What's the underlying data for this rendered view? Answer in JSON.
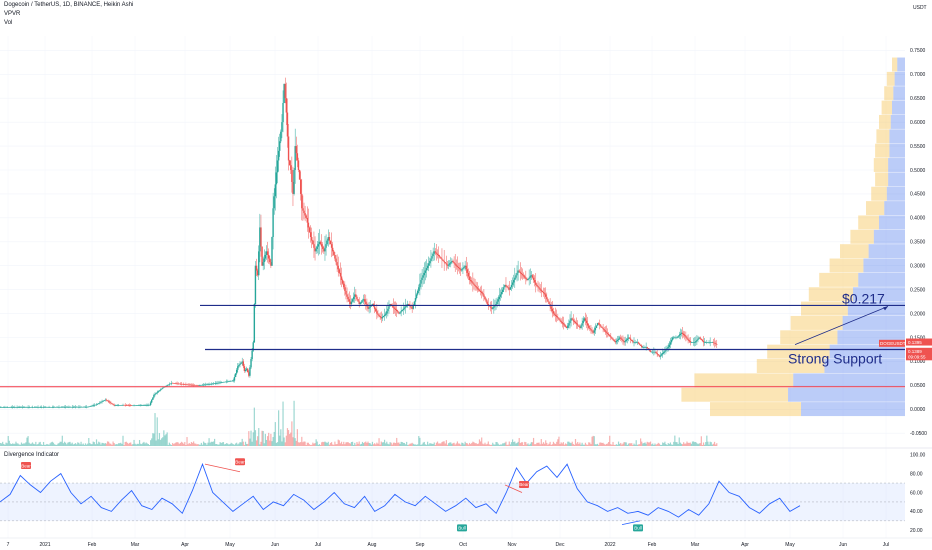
{
  "header": {
    "symbol_line": "Dogecoin / TetherUS, 1D, BINANCE, Heikin Ashi",
    "indicator_1": "VPVR",
    "indicator_2": "Vol",
    "currency": "USDT"
  },
  "price_labels": {
    "current_price_tag": "0.1389",
    "symbol_tag": "DOGEUSDT",
    "countdown_tag": "09:09:55",
    "prev_tag": "0.1395"
  },
  "annotations": {
    "resistance_label": "$0.217",
    "support_label": "Strong Support"
  },
  "oscillator": {
    "title": "Divergence Indicator",
    "signals": [
      {
        "label": "Bear",
        "kind": "bear"
      },
      {
        "label": "Bear",
        "kind": "bear"
      },
      {
        "label": "Bear",
        "kind": "bear"
      },
      {
        "label": "Bull",
        "kind": "bull"
      },
      {
        "label": "Bull",
        "kind": "bull"
      }
    ],
    "y_ticks": [
      "100.00",
      "80.00",
      "60.00",
      "40.00",
      "20.00"
    ]
  },
  "colors": {
    "up": "#26a69a",
    "down": "#ef5350",
    "line": "#1f2d8a",
    "support_red": "#f23645",
    "osc_line": "#2962ff",
    "vp_up_blue": "#3d6eeb",
    "vp_down_yellow": "#f7c55a"
  },
  "chart_data": {
    "type": "candlestick",
    "series_style": "Heikin Ashi",
    "y_ticks": [
      "0.7500",
      "0.7000",
      "0.6500",
      "0.6000",
      "0.5500",
      "0.5000",
      "0.4500",
      "0.4000",
      "0.3500",
      "0.3000",
      "0.2500",
      "0.2000",
      "0.1500",
      "0.1000",
      "0.0500",
      "0.0000",
      "-0.0500"
    ],
    "ylim": [
      -0.06,
      0.78
    ],
    "x_ticks": [
      "7",
      "2021",
      "Feb",
      "Mar",
      "Apr",
      "May",
      "Jun",
      "Jul",
      "Aug",
      "Sep",
      "Oct",
      "Nov",
      "Dec",
      "2022",
      "Feb",
      "Mar",
      "Apr",
      "May",
      "Jun",
      "Jul"
    ],
    "price_path": [
      [
        0,
        0.0045
      ],
      [
        20,
        0.0047
      ],
      [
        40,
        0.005
      ],
      [
        44,
        0.01
      ],
      [
        48,
        0.02
      ],
      [
        52,
        0.008
      ],
      [
        56,
        0.009
      ],
      [
        60,
        0.008
      ],
      [
        64,
        0.0082
      ],
      [
        68,
        0.009
      ],
      [
        70,
        0.03
      ],
      [
        74,
        0.045
      ],
      [
        78,
        0.055
      ],
      [
        84,
        0.052
      ],
      [
        90,
        0.05
      ],
      [
        96,
        0.053
      ],
      [
        100,
        0.056
      ],
      [
        106,
        0.06
      ],
      [
        108,
        0.09
      ],
      [
        110,
        0.1
      ],
      [
        111,
        0.08
      ],
      [
        112,
        0.085
      ],
      [
        113,
        0.07
      ],
      [
        115,
        0.14
      ],
      [
        116,
        0.3
      ],
      [
        117,
        0.28
      ],
      [
        118,
        0.38
      ],
      [
        119,
        0.3
      ],
      [
        121,
        0.33
      ],
      [
        123,
        0.3
      ],
      [
        124,
        0.42
      ],
      [
        126,
        0.52
      ],
      [
        128,
        0.6
      ],
      [
        129,
        0.68
      ],
      [
        130,
        0.62
      ],
      [
        131,
        0.52
      ],
      [
        132,
        0.5
      ],
      [
        133,
        0.45
      ],
      [
        134,
        0.55
      ],
      [
        135,
        0.52
      ],
      [
        136,
        0.48
      ],
      [
        137,
        0.42
      ],
      [
        139,
        0.4
      ],
      [
        141,
        0.36
      ],
      [
        143,
        0.33
      ],
      [
        145,
        0.35
      ],
      [
        147,
        0.33
      ],
      [
        149,
        0.36
      ],
      [
        151,
        0.33
      ],
      [
        153,
        0.3
      ],
      [
        155,
        0.27
      ],
      [
        157,
        0.24
      ],
      [
        159,
        0.22
      ],
      [
        161,
        0.24
      ],
      [
        163,
        0.22
      ],
      [
        165,
        0.23
      ],
      [
        167,
        0.21
      ],
      [
        169,
        0.22
      ],
      [
        171,
        0.2
      ],
      [
        173,
        0.19
      ],
      [
        175,
        0.2
      ],
      [
        177,
        0.22
      ],
      [
        179,
        0.21
      ],
      [
        181,
        0.2
      ],
      [
        183,
        0.21
      ],
      [
        185,
        0.22
      ],
      [
        187,
        0.21
      ],
      [
        189,
        0.24
      ],
      [
        191,
        0.27
      ],
      [
        193,
        0.29
      ],
      [
        195,
        0.31
      ],
      [
        197,
        0.33
      ],
      [
        199,
        0.32
      ],
      [
        201,
        0.31
      ],
      [
        203,
        0.3
      ],
      [
        205,
        0.31
      ],
      [
        207,
        0.3
      ],
      [
        209,
        0.29
      ],
      [
        211,
        0.3
      ],
      [
        213,
        0.27
      ],
      [
        215,
        0.26
      ],
      [
        217,
        0.25
      ],
      [
        219,
        0.24
      ],
      [
        221,
        0.22
      ],
      [
        223,
        0.21
      ],
      [
        225,
        0.22
      ],
      [
        227,
        0.24
      ],
      [
        229,
        0.26
      ],
      [
        231,
        0.25
      ],
      [
        233,
        0.27
      ],
      [
        235,
        0.29
      ],
      [
        237,
        0.28
      ],
      [
        239,
        0.27
      ],
      [
        241,
        0.28
      ],
      [
        243,
        0.26
      ],
      [
        245,
        0.25
      ],
      [
        247,
        0.24
      ],
      [
        249,
        0.22
      ],
      [
        251,
        0.2
      ],
      [
        253,
        0.19
      ],
      [
        255,
        0.18
      ],
      [
        257,
        0.17
      ],
      [
        259,
        0.19
      ],
      [
        261,
        0.18
      ],
      [
        263,
        0.17
      ],
      [
        265,
        0.19
      ],
      [
        267,
        0.17
      ],
      [
        269,
        0.16
      ],
      [
        271,
        0.18
      ],
      [
        273,
        0.17
      ],
      [
        275,
        0.16
      ],
      [
        277,
        0.15
      ],
      [
        279,
        0.14
      ],
      [
        281,
        0.15
      ],
      [
        283,
        0.14
      ],
      [
        285,
        0.15
      ],
      [
        287,
        0.14
      ],
      [
        289,
        0.14
      ],
      [
        291,
        0.13
      ],
      [
        293,
        0.13
      ],
      [
        295,
        0.12
      ],
      [
        297,
        0.12
      ],
      [
        299,
        0.11
      ],
      [
        301,
        0.12
      ],
      [
        303,
        0.13
      ],
      [
        305,
        0.15
      ],
      [
        307,
        0.15
      ],
      [
        309,
        0.16
      ],
      [
        311,
        0.15
      ],
      [
        313,
        0.14
      ],
      [
        315,
        0.14
      ],
      [
        317,
        0.15
      ],
      [
        319,
        0.14
      ],
      [
        321,
        0.14
      ],
      [
        323,
        0.14
      ],
      [
        325,
        0.135
      ]
    ],
    "horizontal_levels": [
      {
        "value": 0.217,
        "label": "$0.217",
        "color": "#1f2d8a"
      },
      {
        "value": 0.125,
        "label": "Strong Support",
        "color": "#1f2d8a"
      },
      {
        "value": 0.047,
        "label": "",
        "color": "#f23645"
      }
    ],
    "volume_profile": [
      {
        "price": 0.72,
        "up": 6,
        "down": 4
      },
      {
        "price": 0.69,
        "up": 8,
        "down": 6
      },
      {
        "price": 0.66,
        "up": 9,
        "down": 7
      },
      {
        "price": 0.63,
        "up": 10,
        "down": 8
      },
      {
        "price": 0.6,
        "up": 11,
        "down": 9
      },
      {
        "price": 0.57,
        "up": 12,
        "down": 10
      },
      {
        "price": 0.54,
        "up": 12,
        "down": 11
      },
      {
        "price": 0.51,
        "up": 13,
        "down": 11
      },
      {
        "price": 0.48,
        "up": 13,
        "down": 10
      },
      {
        "price": 0.45,
        "up": 14,
        "down": 12
      },
      {
        "price": 0.42,
        "up": 16,
        "down": 14
      },
      {
        "price": 0.39,
        "up": 20,
        "down": 16
      },
      {
        "price": 0.36,
        "up": 24,
        "down": 18
      },
      {
        "price": 0.33,
        "up": 28,
        "down": 22
      },
      {
        "price": 0.3,
        "up": 32,
        "down": 26
      },
      {
        "price": 0.27,
        "up": 36,
        "down": 30
      },
      {
        "price": 0.24,
        "up": 40,
        "down": 34
      },
      {
        "price": 0.21,
        "up": 44,
        "down": 36
      },
      {
        "price": 0.18,
        "up": 48,
        "down": 40
      },
      {
        "price": 0.15,
        "up": 52,
        "down": 44
      },
      {
        "price": 0.12,
        "up": 58,
        "down": 48
      },
      {
        "price": 0.09,
        "up": 62,
        "down": 52
      },
      {
        "price": 0.06,
        "up": 86,
        "down": 76
      },
      {
        "price": 0.03,
        "up": 90,
        "down": 82
      },
      {
        "price": 0.0,
        "up": 80,
        "down": 70
      }
    ],
    "oscillator_path": [
      [
        0,
        50
      ],
      [
        4,
        58
      ],
      [
        8,
        78
      ],
      [
        12,
        68
      ],
      [
        16,
        60
      ],
      [
        20,
        72
      ],
      [
        24,
        80
      ],
      [
        28,
        60
      ],
      [
        32,
        48
      ],
      [
        36,
        56
      ],
      [
        40,
        44
      ],
      [
        44,
        40
      ],
      [
        48,
        52
      ],
      [
        52,
        62
      ],
      [
        56,
        46
      ],
      [
        60,
        42
      ],
      [
        64,
        54
      ],
      [
        68,
        48
      ],
      [
        72,
        38
      ],
      [
        76,
        62
      ],
      [
        80,
        90
      ],
      [
        84,
        60
      ],
      [
        88,
        50
      ],
      [
        92,
        40
      ],
      [
        96,
        48
      ],
      [
        100,
        56
      ],
      [
        104,
        42
      ],
      [
        108,
        50
      ],
      [
        112,
        46
      ],
      [
        116,
        58
      ],
      [
        120,
        52
      ],
      [
        124,
        42
      ],
      [
        128,
        50
      ],
      [
        132,
        60
      ],
      [
        136,
        48
      ],
      [
        140,
        44
      ],
      [
        144,
        56
      ],
      [
        148,
        40
      ],
      [
        152,
        46
      ],
      [
        156,
        58
      ],
      [
        160,
        50
      ],
      [
        164,
        46
      ],
      [
        168,
        56
      ],
      [
        172,
        48
      ],
      [
        176,
        40
      ],
      [
        180,
        46
      ],
      [
        184,
        54
      ],
      [
        188,
        44
      ],
      [
        192,
        48
      ],
      [
        196,
        38
      ],
      [
        200,
        60
      ],
      [
        204,
        86
      ],
      [
        208,
        70
      ],
      [
        212,
        82
      ],
      [
        216,
        88
      ],
      [
        220,
        76
      ],
      [
        224,
        90
      ],
      [
        228,
        64
      ],
      [
        232,
        50
      ],
      [
        236,
        46
      ],
      [
        240,
        40
      ],
      [
        244,
        44
      ],
      [
        248,
        38
      ],
      [
        252,
        40
      ],
      [
        256,
        36
      ],
      [
        260,
        44
      ],
      [
        264,
        40
      ],
      [
        268,
        34
      ],
      [
        272,
        42
      ],
      [
        276,
        36
      ],
      [
        280,
        48
      ],
      [
        284,
        72
      ],
      [
        288,
        60
      ],
      [
        292,
        56
      ],
      [
        296,
        44
      ],
      [
        300,
        38
      ],
      [
        304,
        48
      ],
      [
        308,
        54
      ],
      [
        312,
        40
      ],
      [
        316,
        46
      ]
    ]
  }
}
